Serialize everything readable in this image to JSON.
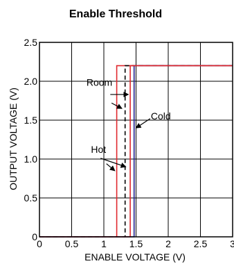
{
  "chart_data": {
    "type": "line",
    "title": "Enable Threshold",
    "xlabel": "ENABLE VOLTAGE (V)",
    "ylabel": "OUTPUT VOLTAGE (V)",
    "xlim": [
      0,
      3
    ],
    "ylim": [
      0,
      2.5
    ],
    "x_ticks": [
      0,
      0.5,
      1,
      1.5,
      2,
      2.5,
      3
    ],
    "x_tick_labels": [
      "0",
      "0.5",
      "1",
      "1.5",
      "2",
      "2.5",
      "3"
    ],
    "y_ticks": [
      0,
      0.5,
      1.0,
      1.5,
      2.0,
      2.5
    ],
    "y_tick_labels": [
      "0",
      "0.5",
      "1.0",
      "1.5",
      "2.0",
      "2.5"
    ],
    "grid": true,
    "series": [
      {
        "name": "Hot",
        "color": "#e0282e",
        "dash": "solid",
        "x": [
          0,
          1.2,
          1.2,
          3.0
        ],
        "y": [
          0,
          0,
          2.2,
          2.2
        ]
      },
      {
        "name": "Room",
        "color": "#000000",
        "dash": "dashed",
        "x": [
          0,
          1.33,
          1.33,
          3.0
        ],
        "y": [
          0,
          0,
          2.2,
          2.2
        ]
      },
      {
        "name": "Cold",
        "color": "#1c1c8c",
        "dash": "solid",
        "x": [
          0,
          1.47,
          1.47,
          3.0
        ],
        "y": [
          0,
          0,
          2.2,
          2.2
        ]
      },
      {
        "name": "",
        "color": "#e0282e",
        "dash": "solid",
        "x": [
          0,
          1.41,
          1.41,
          3.0
        ],
        "y": [
          0,
          0,
          2.2,
          2.2
        ]
      }
    ],
    "annotations": [
      {
        "text": "Room",
        "label_at": [
          0.73,
          1.94
        ],
        "arrow_from": [
          1.1,
          1.83
        ],
        "arrow_to": [
          1.38,
          1.83
        ]
      },
      {
        "text": "",
        "label_at": [
          0,
          0
        ],
        "arrow_from": [
          1.12,
          1.72
        ],
        "arrow_to": [
          1.28,
          1.65
        ]
      },
      {
        "text": "Cold",
        "label_at": [
          1.73,
          1.51
        ],
        "arrow_from": [
          1.72,
          1.52
        ],
        "arrow_to": [
          1.5,
          1.4
        ]
      },
      {
        "text": "Hot",
        "label_at": [
          0.8,
          1.08
        ],
        "arrow_from": [
          0.95,
          1.01
        ],
        "arrow_to": [
          1.34,
          0.9
        ]
      },
      {
        "text": "",
        "label_at": [
          0,
          0
        ],
        "arrow_from": [
          1.04,
          0.94
        ],
        "arrow_to": [
          1.17,
          0.85
        ]
      }
    ]
  }
}
